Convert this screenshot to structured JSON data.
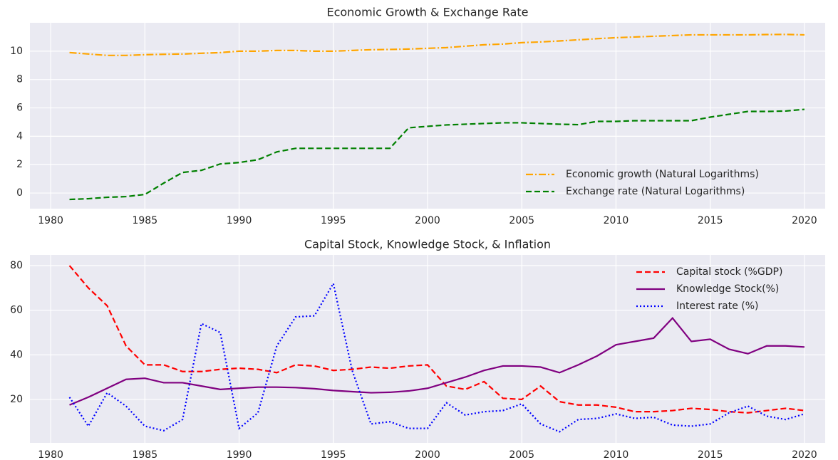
{
  "chart_data": [
    {
      "type": "line",
      "title": "Economic Growth & Exchange Rate",
      "x": [
        1981,
        1982,
        1983,
        1984,
        1985,
        1986,
        1987,
        1988,
        1989,
        1990,
        1991,
        1992,
        1993,
        1994,
        1995,
        1996,
        1997,
        1998,
        1999,
        2000,
        2001,
        2002,
        2003,
        2004,
        2005,
        2006,
        2007,
        2008,
        2009,
        2010,
        2011,
        2012,
        2013,
        2014,
        2015,
        2016,
        2017,
        2018,
        2019,
        2020
      ],
      "series": [
        {
          "name": "Economic growth (Natural Logarithms)",
          "color": "orange",
          "linestyle": "dashdot",
          "values": [
            9.9,
            9.8,
            9.7,
            9.7,
            9.75,
            9.78,
            9.8,
            9.85,
            9.9,
            10.0,
            10.0,
            10.05,
            10.05,
            10.0,
            10.0,
            10.05,
            10.1,
            10.12,
            10.15,
            10.2,
            10.25,
            10.35,
            10.45,
            10.5,
            10.6,
            10.65,
            10.72,
            10.8,
            10.88,
            10.95,
            11.0,
            11.05,
            11.1,
            11.15,
            11.15,
            11.15,
            11.15,
            11.17,
            11.18,
            11.15
          ]
        },
        {
          "name": "Exchange rate (Natural Logarithms)",
          "color": "green",
          "linestyle": "dashed",
          "values": [
            -0.45,
            -0.4,
            -0.3,
            -0.25,
            -0.1,
            0.7,
            1.45,
            1.6,
            2.05,
            2.15,
            2.35,
            2.9,
            3.15,
            3.15,
            3.15,
            3.15,
            3.15,
            3.15,
            4.6,
            4.7,
            4.8,
            4.85,
            4.9,
            4.95,
            4.95,
            4.9,
            4.85,
            4.82,
            5.05,
            5.05,
            5.1,
            5.1,
            5.1,
            5.1,
            5.35,
            5.55,
            5.75,
            5.75,
            5.78,
            5.9
          ]
        }
      ],
      "xlim": [
        1978.9,
        2021.1
      ],
      "xticks": [
        1980,
        1985,
        1990,
        1995,
        2000,
        2005,
        2010,
        2015,
        2020
      ],
      "ylim": [
        -1.1,
        12.0
      ],
      "yticks": [
        0,
        2,
        4,
        6,
        8,
        10
      ],
      "grid": true,
      "legend": "lower right"
    },
    {
      "type": "line",
      "title": "Capital Stock, Knowledge Stock, & Inflation",
      "x": [
        1981,
        1982,
        1983,
        1984,
        1985,
        1986,
        1987,
        1988,
        1989,
        1990,
        1991,
        1992,
        1993,
        1994,
        1995,
        1996,
        1997,
        1998,
        1999,
        2000,
        2001,
        2002,
        2003,
        2004,
        2005,
        2006,
        2007,
        2008,
        2009,
        2010,
        2011,
        2012,
        2013,
        2014,
        2015,
        2016,
        2017,
        2018,
        2019,
        2020
      ],
      "series": [
        {
          "name": "Capital stock (%GDP)",
          "color": "red",
          "linestyle": "dashed",
          "values": [
            80,
            70,
            62,
            44,
            35.5,
            35.5,
            32.5,
            32.5,
            33.5,
            34,
            33.5,
            32,
            35.5,
            35,
            33,
            33.5,
            34.5,
            34,
            35,
            35.5,
            26,
            24.5,
            28,
            20.5,
            20,
            26,
            19,
            17.5,
            17.5,
            16.5,
            14.5,
            14.5,
            15,
            16,
            15.5,
            14.5,
            14,
            15,
            16,
            15
          ]
        },
        {
          "name": "Knowledge Stock(%)",
          "color": "purple",
          "linestyle": "solid",
          "values": [
            17.5,
            21,
            25,
            29,
            29.5,
            27.5,
            27.5,
            26,
            24.5,
            25,
            25.5,
            25.5,
            25.3,
            24.8,
            24,
            23.5,
            23,
            23.2,
            23.8,
            25,
            27.5,
            30,
            33,
            35,
            35,
            34.5,
            32,
            35.5,
            39.5,
            44.5,
            46,
            47.5,
            56.5,
            46,
            47,
            42.5,
            40.5,
            44,
            44,
            43.5
          ]
        },
        {
          "name": "Interest rate (%)",
          "color": "blue",
          "linestyle": "dotted",
          "values": [
            21,
            8,
            23,
            17,
            8,
            6,
            11,
            54,
            50,
            7,
            14,
            44,
            57,
            57.5,
            72,
            33,
            9,
            10,
            7,
            7,
            18.5,
            13,
            14.5,
            15,
            18,
            9,
            5.5,
            11,
            11.5,
            13.5,
            11.5,
            12,
            8.5,
            8,
            9,
            14,
            17,
            12.5,
            11,
            13.5
          ]
        }
      ],
      "xlim": [
        1978.9,
        2021.1
      ],
      "xticks": [
        1980,
        1985,
        1990,
        1995,
        2000,
        2005,
        2010,
        2015,
        2020
      ],
      "ylim": [
        0.5,
        84.8
      ],
      "yticks": [
        20,
        40,
        60,
        80
      ],
      "grid": true,
      "legend": "upper right"
    }
  ]
}
